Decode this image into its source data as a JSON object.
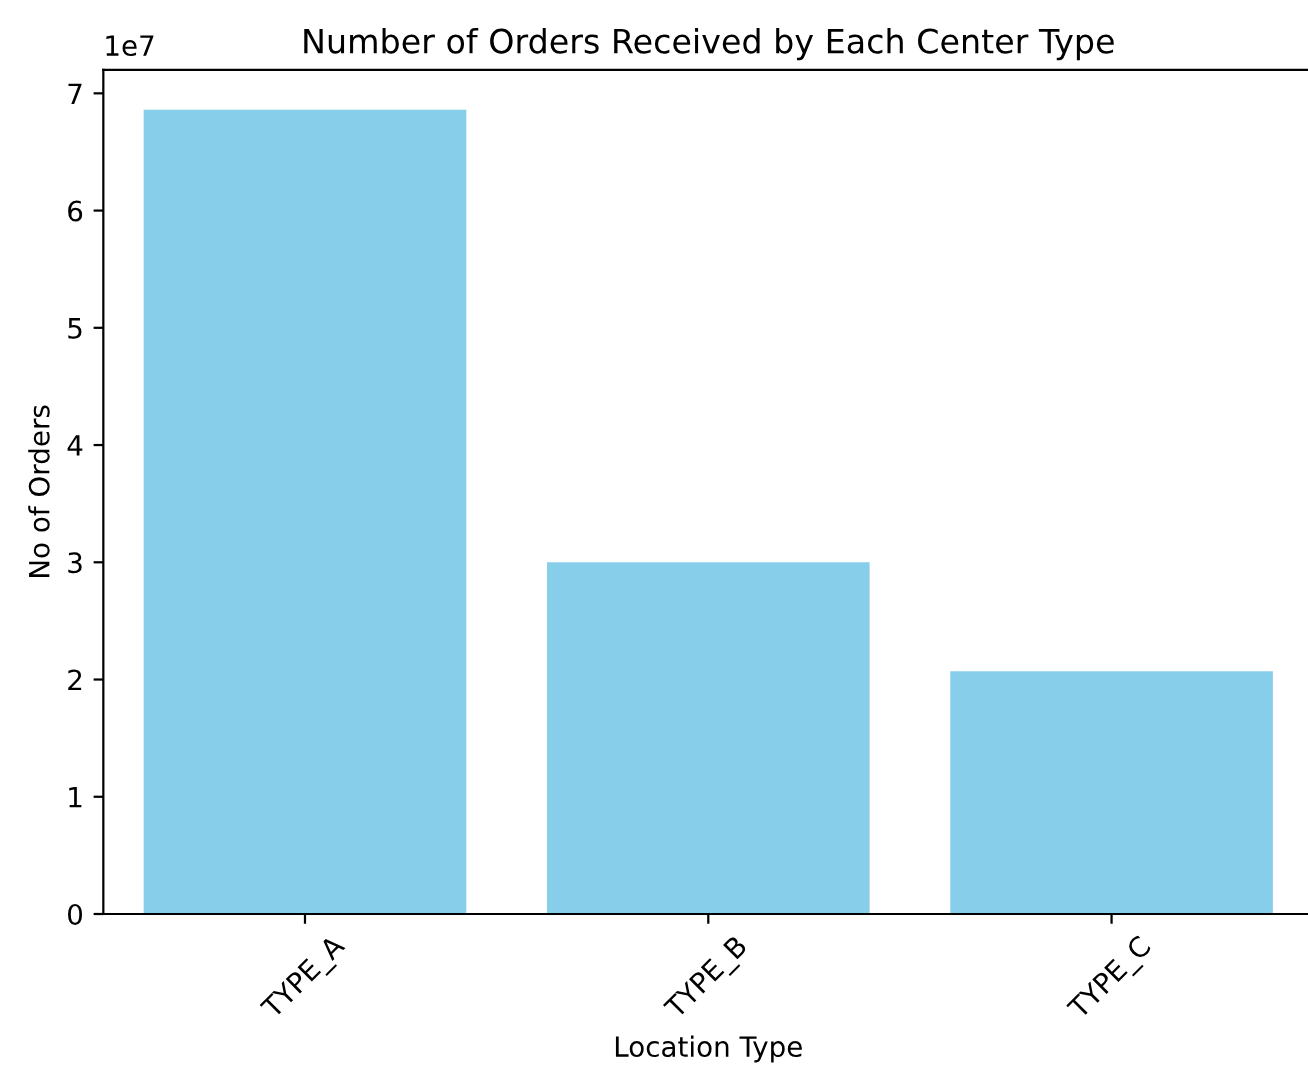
{
  "chart_data": {
    "type": "bar",
    "title": "Number of Orders Received by Each Center Type",
    "xlabel": "Location Type",
    "ylabel": "No of Orders",
    "categories": [
      "TYPE_A",
      "TYPE_B",
      "TYPE_C"
    ],
    "values": [
      6.86,
      3.0,
      2.07
    ],
    "color": "#87ceeb",
    "ylim": [
      0,
      7.2
    ],
    "yticks": [
      0,
      1,
      2,
      3,
      4,
      5,
      6,
      7
    ],
    "annotations": [
      "1e7"
    ],
    "grid": false,
    "legend": false
  }
}
